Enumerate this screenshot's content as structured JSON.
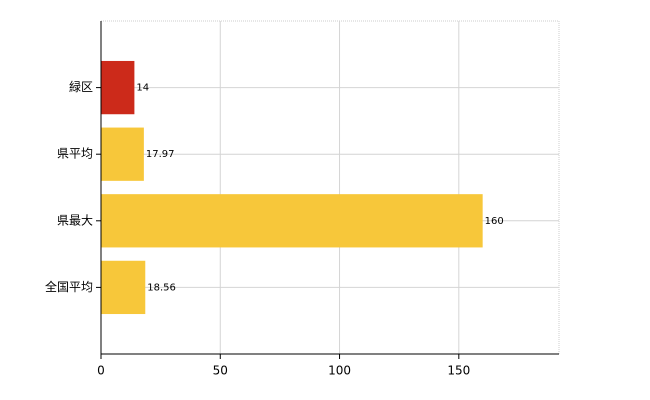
{
  "chart_data": {
    "type": "bar",
    "orientation": "horizontal",
    "categories": [
      "緑区",
      "県平均",
      "県最大",
      "全国平均"
    ],
    "values": [
      14,
      17.97,
      160,
      18.56
    ],
    "colors": [
      "#cc2a1a",
      "#f7c73a",
      "#f7c73a",
      "#f7c73a"
    ],
    "xlim": [
      0,
      192
    ],
    "xticks": [
      0,
      50,
      100,
      150
    ],
    "grid": true
  }
}
